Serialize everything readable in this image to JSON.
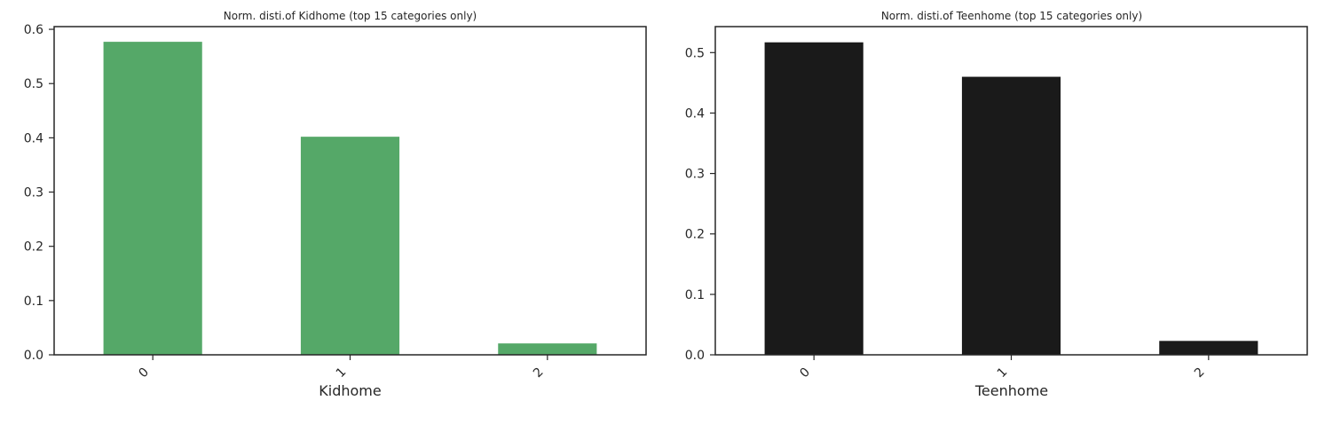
{
  "chart_data": [
    {
      "type": "bar",
      "title": "Norm. disti.of Kidhome (top 15 categories only)",
      "xlabel": "Kidhome",
      "ylabel": "",
      "categories": [
        "0",
        "1",
        "2"
      ],
      "values": [
        0.577,
        0.402,
        0.021
      ],
      "ylim": [
        0,
        0.605
      ],
      "yticks": [
        "0.0",
        "0.1",
        "0.2",
        "0.3",
        "0.4",
        "0.5",
        "0.6"
      ],
      "bar_color": "#55a868",
      "grid": false
    },
    {
      "type": "bar",
      "title": "Norm. disti.of Teenhome (top 15 categories only)",
      "xlabel": "Teenhome",
      "ylabel": "",
      "categories": [
        "0",
        "1",
        "2"
      ],
      "values": [
        0.517,
        0.46,
        0.023
      ],
      "ylim": [
        0,
        0.543
      ],
      "yticks": [
        "0.0",
        "0.1",
        "0.2",
        "0.3",
        "0.4",
        "0.5"
      ],
      "bar_color": "#1a1a1a",
      "grid": false
    }
  ]
}
